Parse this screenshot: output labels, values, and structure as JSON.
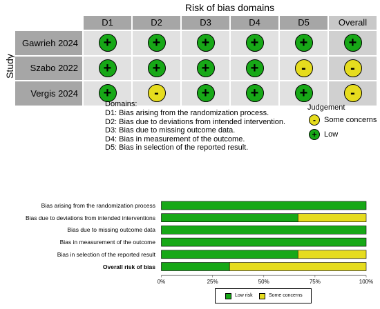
{
  "traffic_light": {
    "title": "Risk of bias domains",
    "study_axis_label": "Study",
    "columns": [
      "D1",
      "D2",
      "D3",
      "D4",
      "D5",
      "Overall"
    ],
    "rows": [
      {
        "study": "Gawrieh 2024",
        "judgements": [
          "low",
          "low",
          "low",
          "low",
          "low",
          "low"
        ]
      },
      {
        "study": "Szabo 2022",
        "judgements": [
          "low",
          "low",
          "low",
          "low",
          "some",
          "some"
        ]
      },
      {
        "study": "Vergis 2024",
        "judgements": [
          "low",
          "some",
          "low",
          "low",
          "low",
          "some"
        ]
      }
    ],
    "symbols": {
      "low": "+",
      "some": "-"
    },
    "colors": {
      "low": "#17a817",
      "some": "#e6dc1e"
    },
    "domains_title": "Domains:",
    "domains": [
      "D1: Bias arising from the randomization process.",
      "D2: Bias due to deviations from intended intervention.",
      "D3: Bias due to missing outcome data.",
      "D4: Bias in measurement of the outcome.",
      "D5: Bias in selection of the reported result."
    ],
    "judgement_title": "Judgement",
    "judgement_legend": [
      {
        "key": "some",
        "label": "Some concerns"
      },
      {
        "key": "low",
        "label": "Low"
      }
    ]
  },
  "chart_data": {
    "type": "bar",
    "orientation": "horizontal-stacked",
    "categories": [
      "Bias arising from the randomization process",
      "Bias due to deviations from intended interventions",
      "Bias due to missing outcome data",
      "Bias in measurement of the outcome",
      "Bias in selection of the reported result",
      "Overall risk of bias"
    ],
    "bold_categories": [
      "Overall risk of bias"
    ],
    "series": [
      {
        "name": "Low risk",
        "color": "#17a817",
        "values": [
          100,
          66.7,
          100,
          100,
          66.7,
          33.3
        ]
      },
      {
        "name": "Some concerns",
        "color": "#e6dc1e",
        "values": [
          0,
          33.3,
          0,
          0,
          33.3,
          66.7
        ]
      }
    ],
    "xticks": [
      "0%",
      "25%",
      "50%",
      "75%",
      "100%"
    ],
    "xlim": [
      0,
      100
    ],
    "legend_position": "bottom"
  }
}
